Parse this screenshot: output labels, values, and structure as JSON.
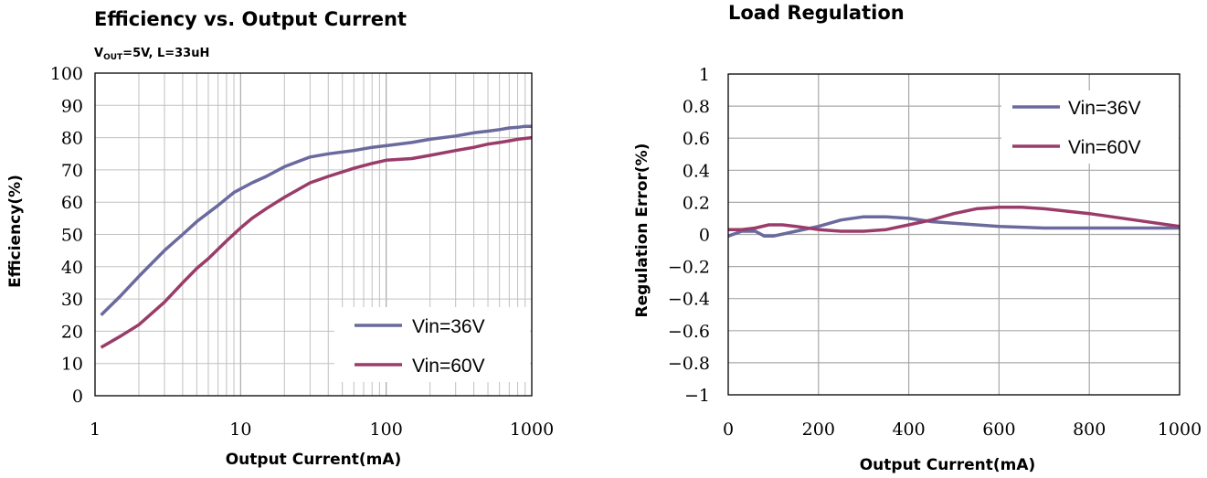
{
  "chart_data": [
    {
      "type": "line",
      "title": "Efficiency vs. Output Current",
      "subtitle": {
        "v": "V",
        "sub": "OUT",
        "rest": "=5V, L=33uH"
      },
      "xlabel": "Output Current(mA)",
      "ylabel": "Efficiency(%)",
      "xscale": "log",
      "xlim": [
        1,
        1000
      ],
      "ylim": [
        0,
        100
      ],
      "xticks": [
        1,
        10,
        100,
        1000
      ],
      "xtick_labels": [
        "1",
        "10",
        "100",
        "1000"
      ],
      "yticks": [
        0,
        10,
        20,
        30,
        40,
        50,
        60,
        70,
        80,
        90,
        100
      ],
      "ytick_labels": [
        "0",
        "10",
        "20",
        "30",
        "40",
        "50",
        "60",
        "70",
        "80",
        "90",
        "100"
      ],
      "grid": true,
      "legend_position": "bottom-right",
      "series": [
        {
          "name": "Vin=36V",
          "color": "#6a6a9e",
          "x": [
            1.1,
            1.5,
            2,
            3,
            4,
            5,
            7,
            9,
            12,
            15,
            20,
            30,
            40,
            60,
            80,
            100,
            150,
            200,
            300,
            400,
            500,
            600,
            700,
            800,
            900,
            1000
          ],
          "y": [
            25,
            31,
            37,
            45,
            50,
            54,
            59,
            63,
            66,
            68,
            71,
            74,
            75,
            76,
            77,
            77.5,
            78.5,
            79.5,
            80.5,
            81.5,
            82,
            82.5,
            83,
            83.2,
            83.5,
            83.5
          ]
        },
        {
          "name": "Vin=60V",
          "color": "#9a3c6a",
          "x": [
            1.1,
            1.5,
            2,
            3,
            4,
            5,
            6,
            8,
            10,
            12,
            15,
            20,
            30,
            40,
            60,
            80,
            100,
            150,
            200,
            300,
            400,
            500,
            600,
            700,
            800,
            1000
          ],
          "y": [
            15,
            18.5,
            22,
            29,
            35,
            39.5,
            42.5,
            48,
            52,
            55,
            58,
            61.5,
            66,
            68,
            70.5,
            72,
            73,
            73.5,
            74.5,
            76,
            77,
            78,
            78.5,
            79,
            79.5,
            80
          ]
        }
      ]
    },
    {
      "type": "line",
      "title": "Load Regulation",
      "xlabel": "Output Current(mA)",
      "ylabel": "Regulation Error(%)",
      "xlim": [
        0,
        1000
      ],
      "ylim": [
        -1,
        1
      ],
      "xticks": [
        0,
        200,
        400,
        600,
        800,
        1000
      ],
      "xtick_labels": [
        "0",
        "200",
        "400",
        "600",
        "800",
        "1000"
      ],
      "yticks": [
        -1,
        -0.8,
        -0.6,
        -0.4,
        -0.2,
        0,
        0.2,
        0.4,
        0.6,
        0.8,
        1
      ],
      "ytick_labels": [
        "−1",
        "−0.8",
        "−0.6",
        "−0.4",
        "−0.2",
        "0",
        "0.2",
        "0.4",
        "0.6",
        "0.8",
        "1"
      ],
      "grid": true,
      "legend_position": "top-right",
      "series": [
        {
          "name": "Vin=36V",
          "color": "#6a6a9e",
          "x": [
            0,
            30,
            60,
            80,
            100,
            150,
            200,
            250,
            300,
            350,
            400,
            450,
            500,
            600,
            700,
            800,
            900,
            1000
          ],
          "y": [
            -0.01,
            0.02,
            0.02,
            -0.01,
            -0.01,
            0.02,
            0.05,
            0.09,
            0.11,
            0.11,
            0.1,
            0.08,
            0.07,
            0.05,
            0.04,
            0.04,
            0.04,
            0.04
          ]
        },
        {
          "name": "Vin=60V",
          "color": "#9a3c6a",
          "x": [
            0,
            30,
            60,
            90,
            120,
            150,
            200,
            250,
            300,
            350,
            400,
            450,
            500,
            550,
            600,
            650,
            700,
            800,
            900,
            1000
          ],
          "y": [
            0.03,
            0.03,
            0.04,
            0.06,
            0.06,
            0.05,
            0.03,
            0.02,
            0.02,
            0.03,
            0.06,
            0.09,
            0.13,
            0.16,
            0.17,
            0.17,
            0.16,
            0.13,
            0.09,
            0.05
          ]
        }
      ]
    }
  ]
}
